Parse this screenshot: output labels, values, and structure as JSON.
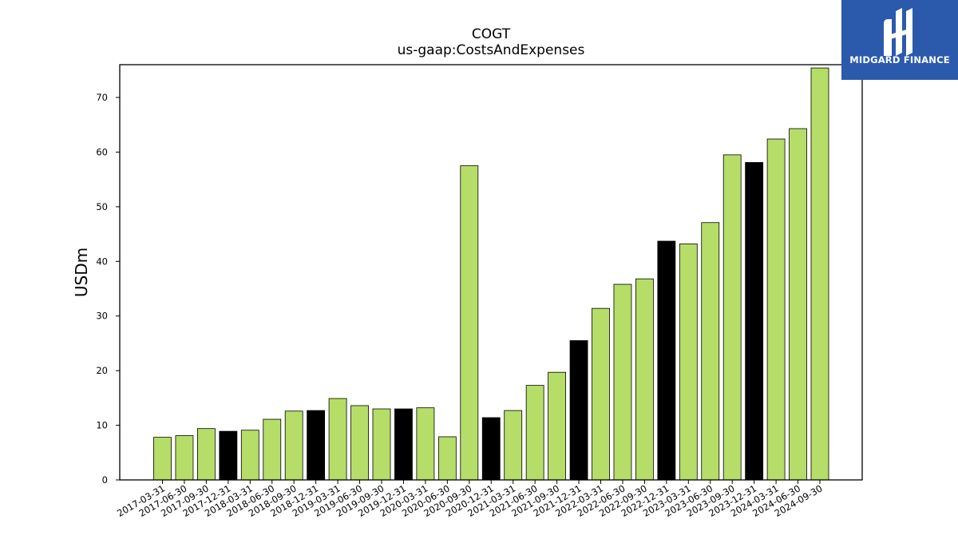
{
  "chart_data": {
    "type": "bar",
    "title": "COGT",
    "subtitle": "us-gaap:CostsAndExpenses",
    "ylabel": "USDm",
    "xlabel": "",
    "ylim": [
      0,
      76
    ],
    "yticks": [
      0,
      10,
      20,
      30,
      40,
      50,
      60,
      70
    ],
    "grid": false,
    "colors": {
      "quarter": "#b5dd68",
      "year_end": "#000000",
      "edge": "#000000"
    },
    "categories": [
      "2017-03-31",
      "2017-06-30",
      "2017-09-30",
      "2017-12-31",
      "2018-03-31",
      "2018-06-30",
      "2018-09-30",
      "2018-12-31",
      "2019-03-31",
      "2019-06-30",
      "2019-09-30",
      "2019-12-31",
      "2020-03-31",
      "2020-06-30",
      "2020-09-30",
      "2020-12-31",
      "2021-03-31",
      "2021-06-30",
      "2021-09-30",
      "2021-12-31",
      "2022-03-31",
      "2022-06-30",
      "2022-09-30",
      "2022-12-31",
      "2023-03-31",
      "2023-06-30",
      "2023-09-30",
      "2023-12-31",
      "2024-03-31",
      "2024-06-30",
      "2024-09-30"
    ],
    "values": [
      7.8,
      8.1,
      9.4,
      8.9,
      9.1,
      11.1,
      12.6,
      12.7,
      14.9,
      13.6,
      13.0,
      13.0,
      13.2,
      7.9,
      57.5,
      11.4,
      12.7,
      17.3,
      19.7,
      25.5,
      31.4,
      35.8,
      36.8,
      43.7,
      43.2,
      47.1,
      59.5,
      58.1,
      62.4,
      64.3,
      75.4
    ],
    "highlight": [
      false,
      false,
      false,
      true,
      false,
      false,
      false,
      true,
      false,
      false,
      false,
      true,
      false,
      false,
      false,
      true,
      false,
      false,
      false,
      true,
      false,
      false,
      false,
      true,
      false,
      false,
      false,
      true,
      false,
      false,
      false
    ]
  },
  "logo": {
    "text": "MIDGARD FINANCE",
    "icon": "midgard-m-logo-icon"
  }
}
